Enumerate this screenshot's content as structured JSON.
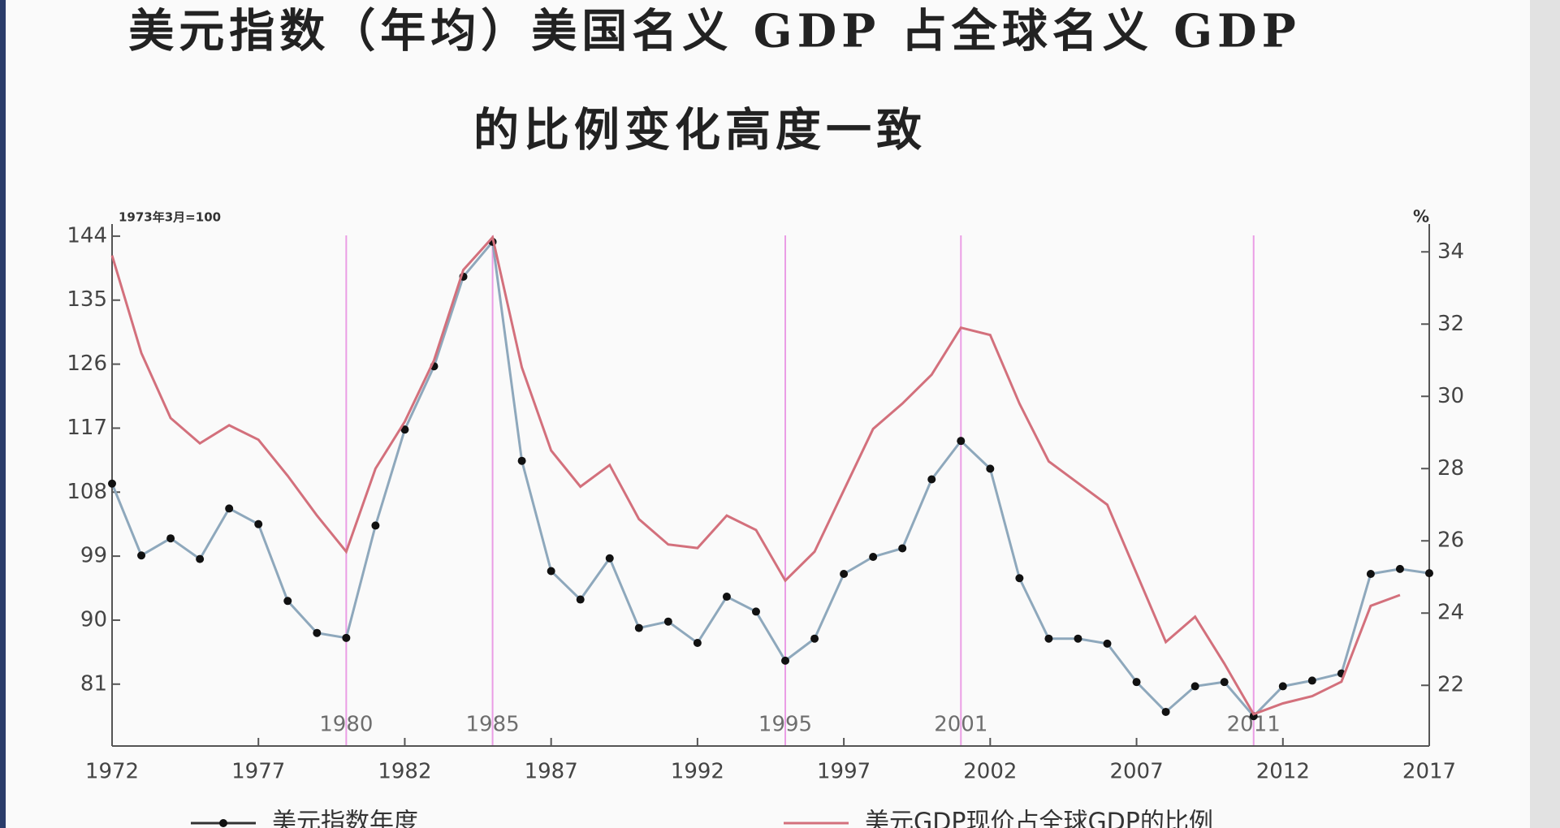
{
  "chart_data": {
    "type": "line",
    "title": [
      "美元指数（年均）美国名义 GDP 占全球名义 GDP",
      "的比例变化高度一致"
    ],
    "y_label": "1973年3月=100",
    "y2_label": "%",
    "x": [
      1972,
      1973,
      1974,
      1975,
      1976,
      1977,
      1978,
      1979,
      1980,
      1981,
      1982,
      1983,
      1984,
      1985,
      1986,
      1987,
      1988,
      1989,
      1990,
      1991,
      1992,
      1993,
      1994,
      1995,
      1996,
      1997,
      1998,
      1999,
      2000,
      2001,
      2002,
      2003,
      2004,
      2005,
      2006,
      2007,
      2008,
      2009,
      2010,
      2011,
      2012,
      2013,
      2014,
      2015,
      2016,
      2017
    ],
    "xlim": [
      1972,
      2017
    ],
    "xticks": [
      1972,
      1977,
      1982,
      1987,
      1992,
      1997,
      2002,
      2007,
      2012,
      2017
    ],
    "ylim": [
      72.3,
      145.7
    ],
    "yticks": [
      81,
      90,
      99,
      108,
      117,
      126,
      135,
      144
    ],
    "y2lim": [
      20.32,
      34.77
    ],
    "y2ticks": [
      22,
      24,
      26,
      28,
      30,
      32,
      34
    ],
    "events": [
      1980,
      1985,
      1995,
      2001,
      2011
    ],
    "event_color": "#e060d8",
    "series": [
      {
        "name": "美元指数年度",
        "color": "#8ea8bc",
        "marker_color": "#111111",
        "values": [
          109.2,
          99.1,
          101.5,
          98.6,
          105.7,
          103.5,
          92.7,
          88.2,
          87.5,
          103.3,
          116.8,
          125.7,
          138.3,
          143.2,
          112.4,
          96.9,
          92.9,
          98.7,
          88.9,
          89.8,
          86.8,
          93.3,
          91.2,
          84.3,
          87.4,
          96.5,
          98.9,
          100.1,
          109.8,
          115.2,
          111.3,
          95.9,
          87.4,
          87.4,
          86.7,
          81.3,
          77.1,
          80.7,
          81.3,
          76.5,
          80.7,
          81.5,
          82.5,
          96.5,
          97.2,
          96.6
        ]
      },
      {
        "name": "美元GDP现价占全球GDP的比例",
        "color": "#d3707c",
        "axis": "y2",
        "values": [
          33.9,
          31.2,
          29.4,
          28.7,
          29.2,
          28.8,
          27.8,
          26.7,
          25.7,
          28.0,
          29.3,
          31.0,
          33.5,
          34.4,
          30.8,
          28.5,
          27.5,
          28.1,
          26.6,
          25.9,
          25.8,
          26.7,
          26.3,
          24.9,
          25.7,
          27.4,
          29.1,
          29.8,
          30.6,
          31.9,
          31.7,
          29.8,
          28.2,
          27.6,
          27.0,
          25.1,
          23.2,
          23.9,
          22.6,
          21.2,
          21.5,
          21.7,
          22.1,
          24.2,
          24.5,
          null
        ]
      }
    ]
  }
}
